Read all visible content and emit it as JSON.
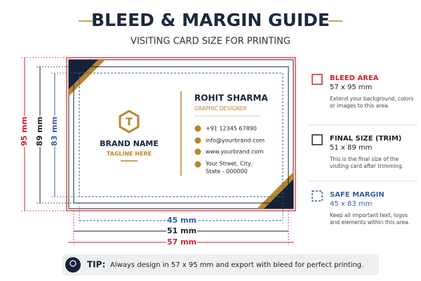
{
  "header": {
    "title": "BLEED & MARGIN GUIDE",
    "subtitle": "VISITING CARD SIZE FOR PRINTING"
  },
  "card": {
    "brand_name": "BRAND NAME",
    "tagline": "TAGLINE HERE",
    "person_name": "ROHIT SHARMA",
    "role": "GRAPHIC DESIGNER",
    "phone": "+91 12345 67890",
    "email": "info@yourbrand.com",
    "website": "www.yourbrand.com",
    "address": [
      "Your Street, City,",
      "State - 000000"
    ]
  },
  "dimensions": {
    "vertical": {
      "bleed": "95 mm",
      "trim": "89 mm",
      "safe": "83 mm"
    },
    "horizontal": {
      "safe": "45 mm",
      "trim": "51 mm",
      "bleed": "57 mm"
    }
  },
  "legend": [
    {
      "title": "BLEED AREA",
      "size": "57 x 95 mm",
      "description": "Extend your background, colors or images to this area."
    },
    {
      "title": "FINAL SIZE (TRIM)",
      "size": "51 x 89 mm",
      "description": "This is the final size of the visiting card after trimming."
    },
    {
      "title": "SAFE MARGIN",
      "size": "45 x 83 mm",
      "description": "Keep all important text, logos and elements within this area."
    }
  ],
  "tip": {
    "label": "TIP:",
    "text": "Always design in 57 x 95 mm and export with bleed for perfect printing."
  }
}
